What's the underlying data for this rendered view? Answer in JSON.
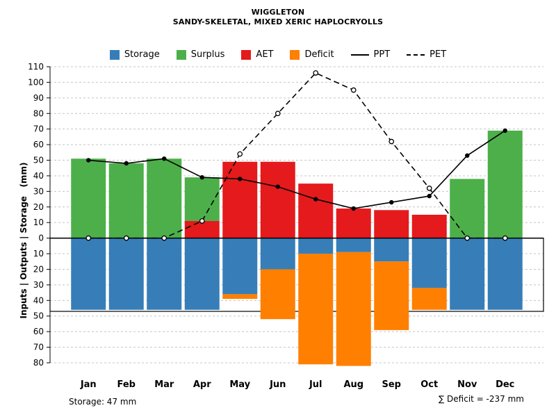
{
  "title": "WIGGLETON",
  "subtitle": "SANDY-SKELETAL, MIXED XERIC HAPLOCRYOLLS",
  "ylabel": "Inputs | Outputs | Storage   (mm)",
  "footer": {
    "storage": "Storage: 47 mm",
    "deficit": "∑ Deficit = -237 mm"
  },
  "legend": [
    {
      "label": "Storage",
      "kind": "swatch",
      "color": "#377EB8"
    },
    {
      "label": "Surplus",
      "kind": "swatch",
      "color": "#4DAF4A"
    },
    {
      "label": "AET",
      "kind": "swatch",
      "color": "#E41A1C"
    },
    {
      "label": "Deficit",
      "kind": "swatch",
      "color": "#FF7F00"
    },
    {
      "label": "PPT",
      "kind": "line-solid",
      "color": "#000000"
    },
    {
      "label": "PET",
      "kind": "line-dashed",
      "color": "#000000"
    }
  ],
  "chart_data": {
    "type": "bar+line",
    "title": "WIGGLETON",
    "subtitle": "SANDY-SKELETAL, MIXED XERIC HAPLOCRYOLLS",
    "ylabel": "Inputs | Outputs | Storage (mm)",
    "categories": [
      "Jan",
      "Feb",
      "Mar",
      "Apr",
      "May",
      "Jun",
      "Jul",
      "Aug",
      "Sep",
      "Oct",
      "Nov",
      "Dec"
    ],
    "ylim": [
      -80,
      110
    ],
    "ytick_step": 10,
    "grid": "horizontal-dashed",
    "legend_position": "top",
    "storage_capacity_mm": 47,
    "deficit_total_mm": -237,
    "series": [
      {
        "name": "Surplus",
        "type": "bar",
        "direction": "up",
        "stacked_on": "AET",
        "color": "#4DAF4A",
        "values": [
          51,
          48,
          51,
          28,
          0,
          0,
          0,
          0,
          0,
          0,
          38,
          69
        ]
      },
      {
        "name": "AET",
        "type": "bar",
        "direction": "up",
        "color": "#E41A1C",
        "values": [
          0,
          0,
          0,
          11,
          49,
          49,
          35,
          19,
          18,
          15,
          0,
          0
        ]
      },
      {
        "name": "Storage",
        "type": "bar",
        "direction": "down",
        "color": "#377EB8",
        "values": [
          46,
          46,
          46,
          46,
          36,
          20,
          10,
          9,
          15,
          32,
          46,
          46
        ]
      },
      {
        "name": "Deficit",
        "type": "bar",
        "direction": "down",
        "stacked_on": "Storage",
        "color": "#FF7F00",
        "values": [
          0,
          0,
          0,
          0,
          3,
          32,
          71,
          73,
          44,
          14,
          0,
          0
        ]
      },
      {
        "name": "PPT",
        "type": "line",
        "style": "solid",
        "marker": "filled-circle",
        "color": "#000000",
        "values": [
          50,
          48,
          51,
          39,
          38,
          33,
          25,
          19,
          23,
          27,
          53,
          69
        ]
      },
      {
        "name": "PET",
        "type": "line",
        "style": "dashed",
        "marker": "open-circle",
        "color": "#000000",
        "values": [
          0,
          0,
          0,
          11,
          54,
          80,
          106,
          95,
          62,
          32,
          0,
          0
        ]
      }
    ]
  }
}
